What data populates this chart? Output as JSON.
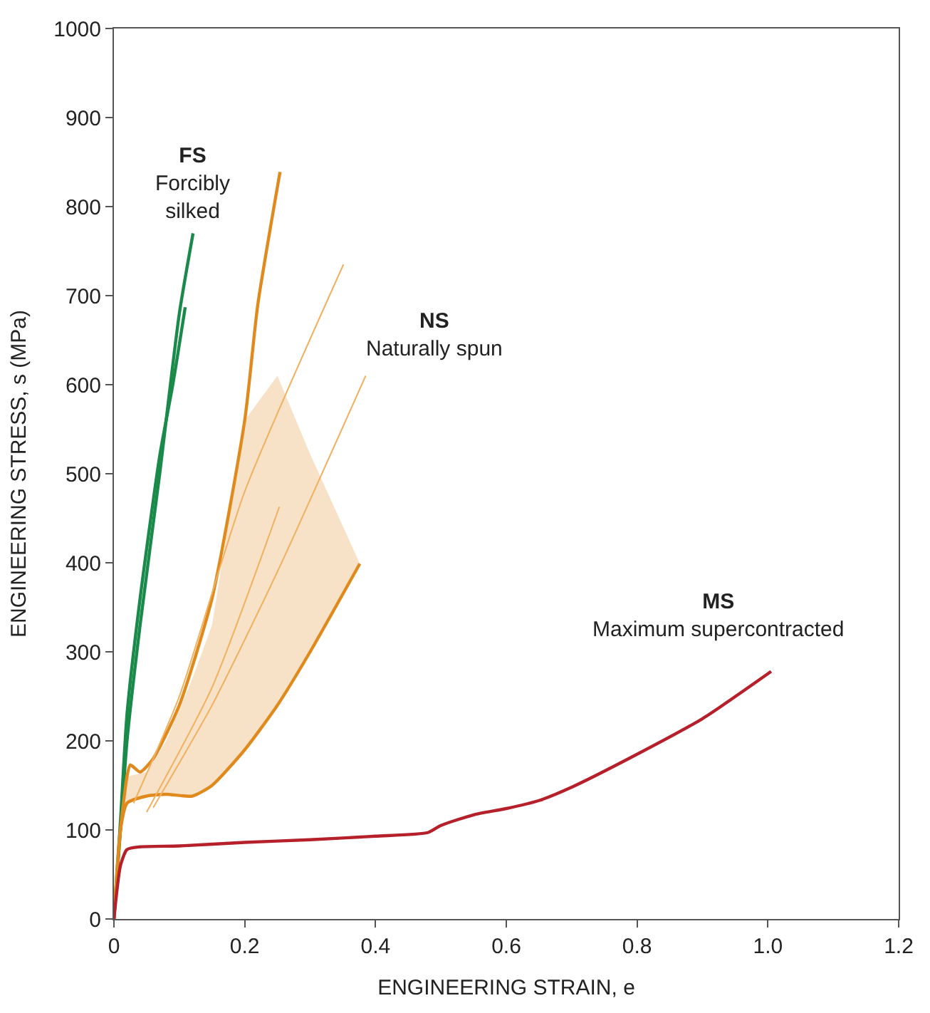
{
  "chart_data": {
    "type": "line",
    "xlabel": "ENGINEERING STRAIN, e",
    "ylabel": "ENGINEERING STRESS, s (MPa)",
    "xlim": [
      0,
      1.2
    ],
    "xticks": [
      0,
      0.2,
      0.4,
      0.6,
      0.8,
      {
        "value": 1,
        "label": "1.0"
      },
      1.2
    ],
    "ylim": [
      0,
      1000
    ],
    "yticks": [
      0,
      100,
      200,
      300,
      400,
      500,
      600,
      700,
      800,
      900,
      1000
    ],
    "marker": "none",
    "line_style": "solid",
    "series": [
      {
        "color": "#1a8a4a",
        "x": [
          0,
          0.01,
          0.02,
          0.04,
          0.07,
          0.1,
          0.121
        ],
        "values": [
          0,
          100,
          200,
          330,
          500,
          680,
          770
        ]
      },
      {
        "color": "#1a8a4a",
        "x": [
          0,
          0.01,
          0.02,
          0.04,
          0.07,
          0.09,
          0.109
        ],
        "values": [
          0,
          110,
          230,
          360,
          520,
          600,
          687
        ]
      },
      {
        "color": "#e08a1e",
        "x": [
          0,
          0.01,
          0.02,
          0.025,
          0.04,
          0.06,
          0.1,
          0.15,
          0.2,
          0.22,
          0.254
        ],
        "values": [
          0,
          100,
          160,
          173,
          165,
          180,
          240,
          360,
          560,
          690,
          839
        ]
      },
      {
        "color": "#e08a1e",
        "x": [
          0,
          0.01,
          0.02,
          0.05,
          0.08,
          0.12,
          0.15,
          0.2,
          0.25,
          0.3,
          0.376
        ],
        "values": [
          0,
          100,
          130,
          138,
          140,
          138,
          150,
          190,
          240,
          300,
          399
        ],
        "lower": [
          0,
          100,
          130,
          138,
          140,
          138,
          150,
          190,
          240,
          300,
          399
        ],
        "upper": [
          0,
          100,
          160,
          165,
          200,
          270,
          330,
          560,
          610,
          522,
          399
        ]
      },
      {
        "color": "#f0b060",
        "x": [
          0.03,
          0.1,
          0.2,
          0.351
        ],
        "values": [
          130,
          250,
          480,
          735
        ]
      },
      {
        "color": "#f0b060",
        "x": [
          0.06,
          0.15,
          0.25,
          0.385
        ],
        "values": [
          125,
          240,
          390,
          610
        ]
      },
      {
        "color": "#f0b060",
        "x": [
          0.05,
          0.15,
          0.253
        ],
        "values": [
          120,
          260,
          463
        ]
      },
      {
        "color": "#b5202a",
        "x": [
          0,
          0.01,
          0.02,
          0.04,
          0.1,
          0.2,
          0.3,
          0.4,
          0.48,
          0.5,
          0.55,
          0.6,
          0.65,
          0.7,
          0.8,
          0.9,
          1.005
        ],
        "values": [
          0,
          60,
          78,
          81,
          82,
          86,
          89,
          93,
          97,
          105,
          117,
          124,
          133,
          148,
          185,
          225,
          278
        ]
      }
    ],
    "annotations": [
      "FS\nForcibly\nsilked",
      "NS\nNaturally spun",
      "MS\nMaximum supercontracted"
    ]
  }
}
